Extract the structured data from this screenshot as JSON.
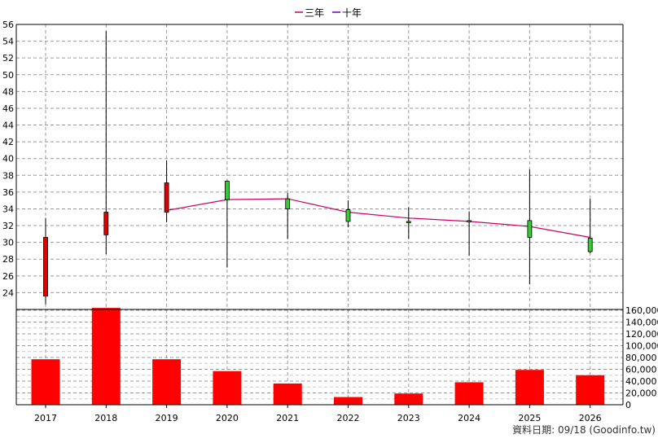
{
  "legend": [
    {
      "label": "三年",
      "color": "#cc0066"
    },
    {
      "label": "十年",
      "color": "#6600cc"
    }
  ],
  "source_note": "資料日期: 09/18 (Goodinfo.tw)",
  "chart_data": [
    {
      "type": "candlestick",
      "title": "",
      "categories": [
        "2017",
        "2018",
        "2019",
        "2020",
        "2021",
        "2022",
        "2023",
        "2024",
        "2025",
        "2026"
      ],
      "ohlc": [
        {
          "open": 23.6,
          "high": 32.9,
          "low": 22.6,
          "close": 30.6
        },
        {
          "open": 30.9,
          "high": 55.2,
          "low": 28.6,
          "close": 33.6
        },
        {
          "open": 33.6,
          "high": 39.8,
          "low": 32.4,
          "close": 37.1
        },
        {
          "open": 37.3,
          "high": 37.4,
          "low": 27.0,
          "close": 35.1
        },
        {
          "open": 35.2,
          "high": 35.9,
          "low": 30.4,
          "close": 34.0
        },
        {
          "open": 33.9,
          "high": 35.0,
          "low": 31.8,
          "close": 32.5
        },
        {
          "open": 32.5,
          "high": 34.2,
          "low": 30.4,
          "close": 32.4
        },
        {
          "open": 32.6,
          "high": 33.7,
          "low": 28.4,
          "close": 32.5
        },
        {
          "open": 32.6,
          "high": 38.7,
          "low": 25.0,
          "close": 30.6
        },
        {
          "open": 30.5,
          "high": 35.2,
          "low": 28.7,
          "close": 28.9
        }
      ],
      "series": [
        {
          "name": "三年",
          "color": "#cc0066",
          "values": [
            null,
            null,
            33.8,
            35.1,
            35.2,
            33.6,
            32.9,
            32.5,
            31.9,
            30.6
          ]
        }
      ],
      "ylim": [
        22,
        56
      ],
      "yticks": [
        24,
        26,
        28,
        30,
        32,
        34,
        36,
        38,
        40,
        42,
        44,
        46,
        48,
        50,
        52,
        54,
        56
      ],
      "grid": true,
      "legend_position": "top-center"
    },
    {
      "type": "bar",
      "categories": [
        "2017",
        "2018",
        "2019",
        "2020",
        "2021",
        "2022",
        "2023",
        "2024",
        "2025",
        "2026"
      ],
      "values": [
        77000,
        164000,
        77000,
        57000,
        36000,
        13000,
        19000,
        38000,
        59000,
        50000
      ],
      "color": "#ff0000",
      "ylim": [
        0,
        160000
      ],
      "yticks": [
        0,
        20000,
        40000,
        60000,
        80000,
        100000,
        120000,
        140000,
        160000
      ],
      "ytick_labels": [
        "0",
        "20,000",
        "40,000",
        "60,000",
        "80,000",
        "100,000",
        "120,000",
        "140,000",
        "160,000"
      ],
      "grid": true
    }
  ]
}
